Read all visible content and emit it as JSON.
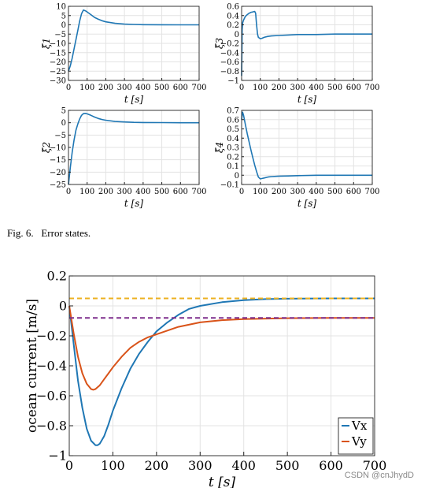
{
  "caption": {
    "fig_label": "Fig. 6.",
    "text": "Error states."
  },
  "watermark": "CSDN @cnJhydD",
  "chart_data": [
    {
      "type": "line",
      "ylabel": "ξ̃1",
      "xlabel": "t [s]",
      "xlim": [
        0,
        700
      ],
      "ylim": [
        -30,
        10
      ],
      "xticks": [
        0,
        100,
        200,
        300,
        400,
        500,
        600,
        700
      ],
      "yticks": [
        10,
        5,
        0,
        -5,
        -10,
        -15,
        -20,
        -25,
        -30
      ],
      "grid": true,
      "series": [
        {
          "color": "#1f77b4",
          "x": [
            0,
            10,
            20,
            30,
            40,
            50,
            60,
            70,
            80,
            90,
            100,
            120,
            140,
            160,
            180,
            200,
            250,
            300,
            350,
            400,
            500,
            600,
            700
          ],
          "y": [
            -25,
            -22,
            -18,
            -13,
            -8,
            -3,
            2,
            6,
            8,
            7.6,
            7,
            5.5,
            4,
            3,
            2.2,
            1.6,
            0.8,
            0.4,
            0.2,
            0.1,
            0.05,
            0,
            0
          ]
        }
      ]
    },
    {
      "type": "line",
      "ylabel": "ξ̃3",
      "xlabel": "t [s]",
      "xlim": [
        0,
        700
      ],
      "ylim": [
        -1,
        0.6
      ],
      "xticks": [
        0,
        100,
        200,
        300,
        400,
        500,
        600,
        700
      ],
      "yticks": [
        0.6,
        0.4,
        0.2,
        0,
        -0.2,
        -0.4,
        -0.6,
        -0.8,
        -1
      ],
      "grid": true,
      "series": [
        {
          "color": "#1f77b4",
          "x": [
            0,
            3,
            6,
            10,
            20,
            30,
            40,
            50,
            60,
            70,
            75,
            80,
            85,
            90,
            100,
            110,
            120,
            140,
            160,
            200,
            250,
            300,
            400,
            500,
            600,
            700
          ],
          "y": [
            -0.9,
            0.1,
            0.25,
            0.3,
            0.38,
            0.42,
            0.45,
            0.47,
            0.48,
            0.49,
            0.45,
            0.2,
            0.0,
            -0.07,
            -0.1,
            -0.09,
            -0.07,
            -0.05,
            -0.04,
            -0.03,
            -0.02,
            -0.01,
            -0.01,
            0,
            0,
            0
          ]
        }
      ]
    },
    {
      "type": "line",
      "ylabel": "ξ̃2",
      "xlabel": "t [s]",
      "xlim": [
        0,
        700
      ],
      "ylim": [
        -25,
        5
      ],
      "xticks": [
        0,
        100,
        200,
        300,
        400,
        500,
        600,
        700
      ],
      "yticks": [
        5,
        0,
        -5,
        -10,
        -15,
        -20,
        -25
      ],
      "grid": true,
      "series": [
        {
          "color": "#1f77b4",
          "x": [
            0,
            10,
            20,
            30,
            40,
            50,
            60,
            70,
            80,
            90,
            100,
            120,
            140,
            160,
            180,
            200,
            250,
            300,
            350,
            400,
            500,
            600,
            700
          ],
          "y": [
            -25,
            -18,
            -12,
            -7,
            -3,
            -0.5,
            1.5,
            3,
            3.7,
            3.8,
            3.6,
            3,
            2.3,
            1.7,
            1.3,
            1,
            0.5,
            0.3,
            0.15,
            0.1,
            0.05,
            0,
            0
          ]
        }
      ]
    },
    {
      "type": "line",
      "ylabel": "ξ̃4",
      "xlabel": "t [s]",
      "xlim": [
        0,
        700
      ],
      "ylim": [
        -0.1,
        0.7
      ],
      "xticks": [
        0,
        100,
        200,
        300,
        400,
        500,
        600,
        700
      ],
      "yticks": [
        0.7,
        0.6,
        0.5,
        0.4,
        0.3,
        0.2,
        0.1,
        0,
        -0.1
      ],
      "grid": true,
      "series": [
        {
          "color": "#1f77b4",
          "x": [
            0,
            5,
            10,
            20,
            30,
            40,
            50,
            60,
            70,
            80,
            90,
            100,
            110,
            120,
            140,
            160,
            200,
            250,
            300,
            400,
            500,
            600,
            700
          ],
          "y": [
            0.6,
            0.68,
            0.65,
            0.55,
            0.45,
            0.36,
            0.27,
            0.19,
            0.11,
            0.04,
            -0.02,
            -0.04,
            -0.035,
            -0.03,
            -0.02,
            -0.015,
            -0.01,
            -0.008,
            -0.005,
            0,
            0,
            0,
            0
          ]
        }
      ]
    },
    {
      "type": "line",
      "ylabel": "ocean current [m/s]",
      "xlabel": "t [s]",
      "xlim": [
        0,
        700
      ],
      "ylim": [
        -1,
        0.2
      ],
      "xticks": [
        0,
        100,
        200,
        300,
        400,
        500,
        600,
        700
      ],
      "yticks": [
        0.2,
        0,
        -0.2,
        -0.4,
        -0.6,
        -0.8,
        -1
      ],
      "grid": true,
      "legend": "bottom-right",
      "series": [
        {
          "name": "Vx",
          "color": "#1f77b4",
          "x": [
            0,
            10,
            20,
            30,
            40,
            50,
            60,
            65,
            70,
            80,
            90,
            100,
            120,
            140,
            160,
            180,
            200,
            225,
            250,
            275,
            300,
            350,
            400,
            450,
            500,
            600,
            700
          ],
          "y": [
            0,
            -0.25,
            -0.5,
            -0.68,
            -0.82,
            -0.9,
            -0.93,
            -0.93,
            -0.92,
            -0.87,
            -0.79,
            -0.7,
            -0.55,
            -0.42,
            -0.32,
            -0.24,
            -0.17,
            -0.11,
            -0.06,
            -0.02,
            0,
            0.025,
            0.038,
            0.045,
            0.048,
            0.05,
            0.05
          ]
        },
        {
          "name": "Vy",
          "color": "#d95319",
          "x": [
            0,
            10,
            20,
            30,
            40,
            50,
            55,
            60,
            70,
            80,
            90,
            100,
            120,
            140,
            160,
            180,
            200,
            250,
            300,
            350,
            400,
            500,
            600,
            700
          ],
          "y": [
            0,
            -0.18,
            -0.34,
            -0.45,
            -0.52,
            -0.555,
            -0.56,
            -0.555,
            -0.53,
            -0.49,
            -0.45,
            -0.41,
            -0.34,
            -0.28,
            -0.24,
            -0.21,
            -0.19,
            -0.14,
            -0.11,
            -0.095,
            -0.088,
            -0.082,
            -0.08,
            -0.08
          ]
        },
        {
          "color": "#edb120",
          "dash": true,
          "x": [
            0,
            700
          ],
          "y": [
            0.05,
            0.05
          ]
        },
        {
          "color": "#7e2f8e",
          "dash": true,
          "x": [
            0,
            700
          ],
          "y": [
            -0.08,
            -0.08
          ]
        }
      ]
    }
  ]
}
